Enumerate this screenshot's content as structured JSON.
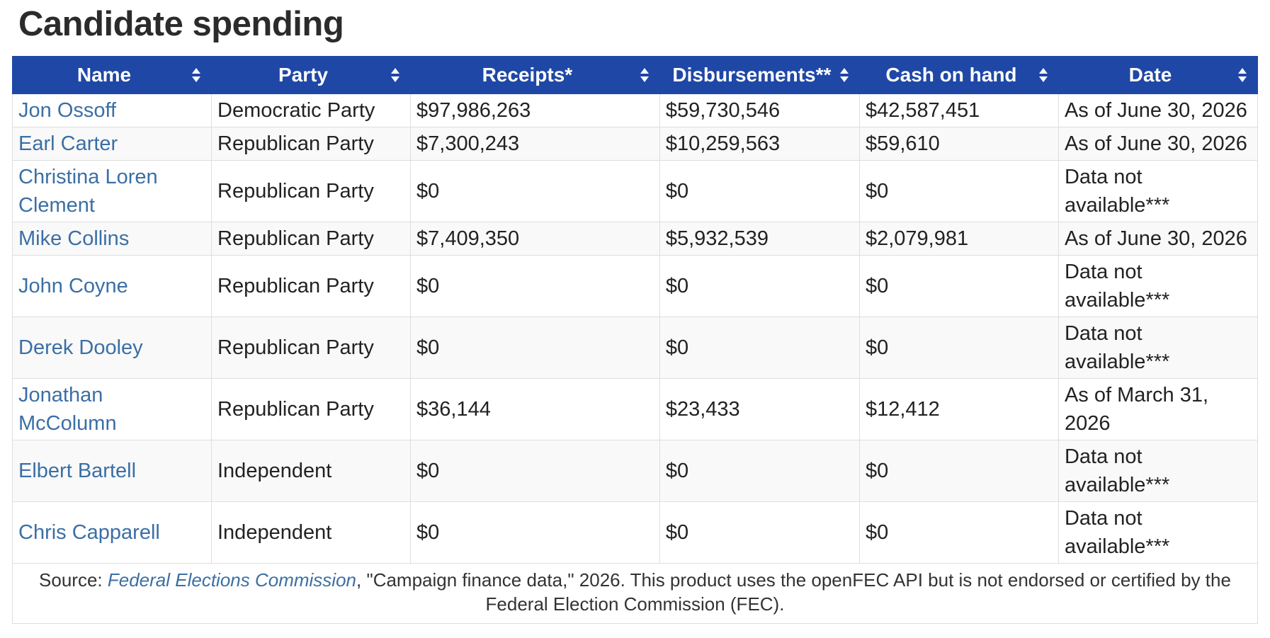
{
  "page_title": "Candidate spending",
  "table": {
    "columns": [
      {
        "label": "Name"
      },
      {
        "label": "Party"
      },
      {
        "label": "Receipts*"
      },
      {
        "label": "Disbursements**"
      },
      {
        "label": "Cash on hand"
      },
      {
        "label": "Date"
      }
    ],
    "rows": [
      {
        "name": "Jon Ossoff",
        "party": "Democratic Party",
        "receipts": "$97,986,263",
        "disbursements": "$59,730,546",
        "cash": "$42,587,451",
        "date": "As of June 30, 2026"
      },
      {
        "name": "Earl Carter",
        "party": "Republican Party",
        "receipts": "$7,300,243",
        "disbursements": "$10,259,563",
        "cash": "$59,610",
        "date": "As of June 30, 2026"
      },
      {
        "name": "Christina Loren Clement",
        "party": "Republican Party",
        "receipts": "$0",
        "disbursements": "$0",
        "cash": "$0",
        "date": "Data not available***"
      },
      {
        "name": "Mike Collins",
        "party": "Republican Party",
        "receipts": "$7,409,350",
        "disbursements": "$5,932,539",
        "cash": "$2,079,981",
        "date": "As of June 30, 2026"
      },
      {
        "name": "John Coyne",
        "party": "Republican Party",
        "receipts": "$0",
        "disbursements": "$0",
        "cash": "$0",
        "date": "Data not available***"
      },
      {
        "name": "Derek Dooley",
        "party": "Republican Party",
        "receipts": "$0",
        "disbursements": "$0",
        "cash": "$0",
        "date": "Data not available***"
      },
      {
        "name": "Jonathan McColumn",
        "party": "Republican Party",
        "receipts": "$36,144",
        "disbursements": "$23,433",
        "cash": "$12,412",
        "date": "As of March 31, 2026"
      },
      {
        "name": "Elbert Bartell",
        "party": "Independent",
        "receipts": "$0",
        "disbursements": "$0",
        "cash": "$0",
        "date": "Data not available***"
      },
      {
        "name": "Chris Capparell",
        "party": "Independent",
        "receipts": "$0",
        "disbursements": "$0",
        "cash": "$0",
        "date": "Data not available***"
      }
    ]
  },
  "source": {
    "prefix": "Source: ",
    "link_text": "Federal Elections Commission",
    "suffix": ", \"Campaign finance data,\" 2026. This product uses the openFEC API but is not endorsed or certified by the Federal Election Commission (FEC)."
  },
  "colors": {
    "header_bg": "#1f47a6",
    "link": "#3b6fa5"
  }
}
